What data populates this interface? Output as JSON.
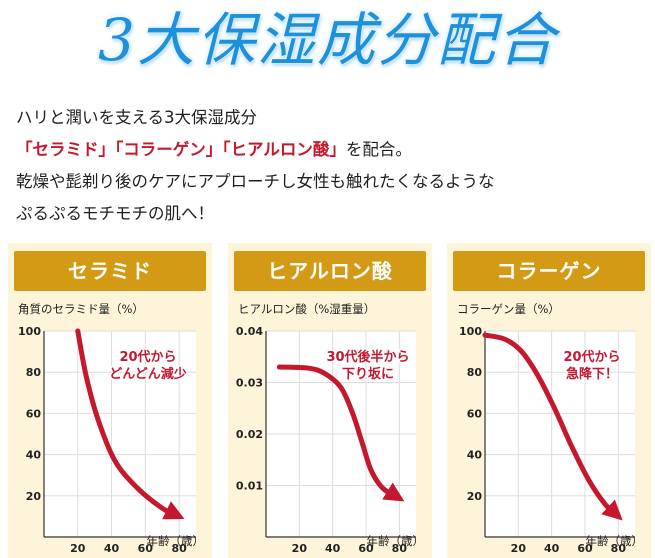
{
  "title": "3大保湿成分配合",
  "intro": {
    "line1": "ハリと潤いを支える3大保湿成分",
    "line2_red": "「セラミド」「コラーゲン」「ヒアルロン酸」",
    "line2_rest": "を配合。",
    "line3": "乾燥や髭剃り後のケアにアプローチし女性も触れたくなるような",
    "line4": "ぷるぷるモチモチの肌へ！"
  },
  "colors": {
    "title": "#1e90dc",
    "header": "#d39a15",
    "panel_bg": "#fdf4da",
    "curve": "#c4182e",
    "annotation": "#c4182e"
  },
  "chart_data": [
    {
      "type": "line",
      "title": "セラミド",
      "ylabel": "角質のセラミド量（%）",
      "xlabel": "年齢（歳）",
      "xlim": [
        0,
        90
      ],
      "ylim": [
        0,
        100
      ],
      "x_ticks": [
        "20",
        "40",
        "60",
        "80"
      ],
      "y_ticks": [
        "100",
        "80",
        "60",
        "40",
        "20"
      ],
      "annotation": [
        "20代から",
        "どんどん減少"
      ],
      "points": [
        [
          20,
          100
        ],
        [
          25,
          78
        ],
        [
          32,
          57
        ],
        [
          42,
          37
        ],
        [
          55,
          24
        ],
        [
          70,
          14
        ],
        [
          80,
          10
        ]
      ]
    },
    {
      "type": "line",
      "title": "ヒアルロン酸",
      "ylabel": "ヒアルロン酸（%湿重量）",
      "xlabel": "年齢（歳）",
      "xlim": [
        0,
        90
      ],
      "ylim": [
        0,
        0.04
      ],
      "x_ticks": [
        "20",
        "40",
        "60",
        "80"
      ],
      "y_ticks": [
        "0.04",
        "0.03",
        "0.02",
        "0.01"
      ],
      "annotation": [
        "30代後半から",
        "下り坂に"
      ],
      "points": [
        [
          8,
          0.033
        ],
        [
          25,
          0.0328
        ],
        [
          35,
          0.0318
        ],
        [
          45,
          0.029
        ],
        [
          52,
          0.024
        ],
        [
          58,
          0.018
        ],
        [
          63,
          0.013
        ],
        [
          70,
          0.0095
        ],
        [
          80,
          0.0075
        ]
      ]
    },
    {
      "type": "line",
      "title": "コラーゲン",
      "ylabel": "コラーゲン量（%）",
      "xlabel": "年齢（歳）",
      "xlim": [
        0,
        90
      ],
      "ylim": [
        0,
        100
      ],
      "x_ticks": [
        "20",
        "40",
        "60",
        "80"
      ],
      "y_ticks": [
        "100",
        "80",
        "60",
        "40",
        "20"
      ],
      "annotation": [
        "20代から",
        "急降下！"
      ],
      "points": [
        [
          0,
          98
        ],
        [
          12,
          96
        ],
        [
          22,
          90
        ],
        [
          32,
          78
        ],
        [
          42,
          62
        ],
        [
          52,
          44
        ],
        [
          62,
          28
        ],
        [
          72,
          16
        ],
        [
          80,
          10
        ]
      ]
    }
  ]
}
